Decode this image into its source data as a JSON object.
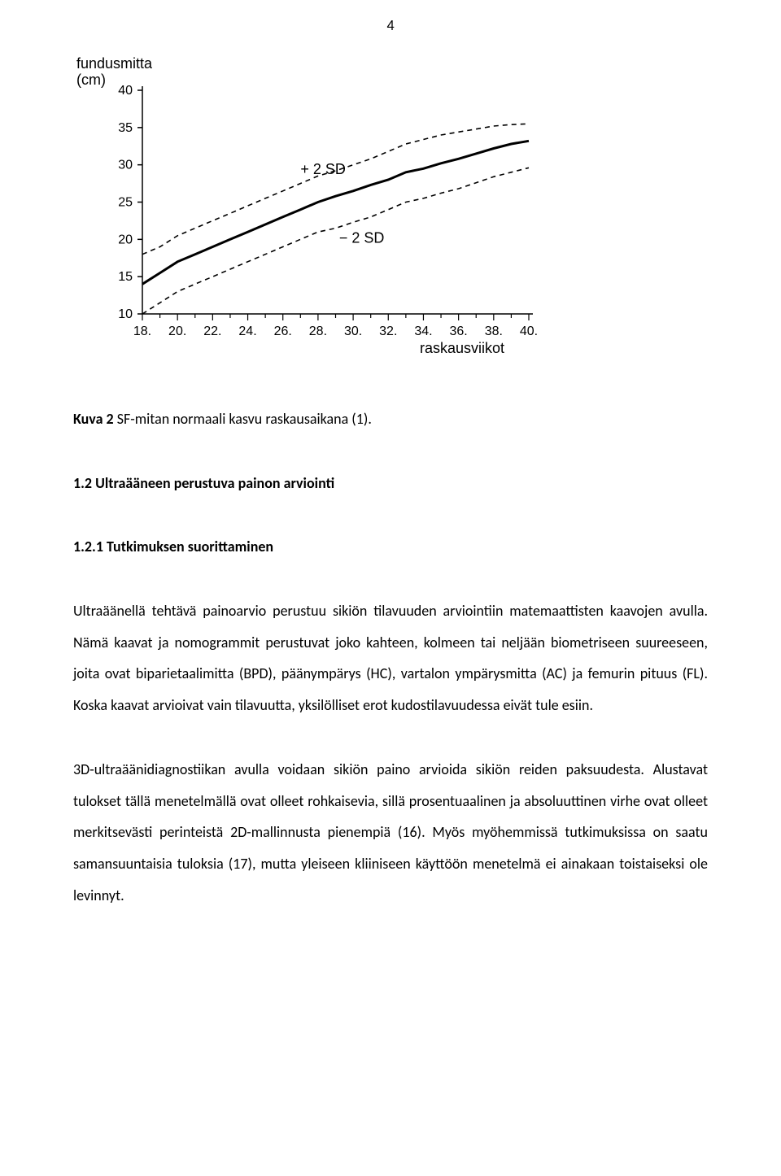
{
  "page_number": "4",
  "chart": {
    "type": "line",
    "y_axis_title_line1": "fundusmitta",
    "y_axis_title_line2": "(cm)",
    "x_axis_title": "raskausviikot",
    "y_ticks": [
      10,
      15,
      20,
      25,
      30,
      35,
      40
    ],
    "x_ticks": [
      18,
      20,
      22,
      24,
      26,
      28,
      30,
      32,
      34,
      36,
      38,
      40
    ],
    "upper_label": "+ 2 SD",
    "lower_label": "− 2 SD",
    "series_mean": {
      "x": [
        18,
        19,
        20,
        21,
        22,
        23,
        24,
        25,
        26,
        27,
        28,
        29,
        30,
        31,
        32,
        33,
        34,
        35,
        36,
        37,
        38,
        39,
        40
      ],
      "y": [
        14,
        15.5,
        17,
        18,
        19,
        20,
        21,
        22,
        23,
        24,
        25,
        25.8,
        26.5,
        27.3,
        28,
        29,
        29.5,
        30.2,
        30.8,
        31.5,
        32.2,
        32.8,
        33.2
      ],
      "stroke": "#000000",
      "stroke_width": 3.0,
      "dash": "none"
    },
    "series_upper": {
      "x": [
        18,
        19,
        20,
        21,
        22,
        23,
        24,
        25,
        26,
        27,
        28,
        29,
        30,
        31,
        32,
        33,
        34,
        35,
        36,
        37,
        38,
        39,
        40
      ],
      "y": [
        18,
        19,
        20.5,
        21.5,
        22.5,
        23.5,
        24.5,
        25.5,
        26.5,
        27.5,
        28.5,
        29.2,
        30,
        30.8,
        31.8,
        32.8,
        33.4,
        34,
        34.4,
        34.8,
        35.2,
        35.4,
        35.5
      ],
      "stroke": "#000000",
      "stroke_width": 1.6,
      "dash": "6,5"
    },
    "series_lower": {
      "x": [
        18,
        19,
        20,
        21,
        22,
        23,
        24,
        25,
        26,
        27,
        28,
        29,
        30,
        31,
        32,
        33,
        34,
        35,
        36,
        37,
        38,
        39,
        40
      ],
      "y": [
        10,
        11.5,
        13,
        14,
        15,
        16,
        17,
        18,
        19,
        20,
        21,
        21.5,
        22.3,
        23,
        24,
        25,
        25.5,
        26.2,
        26.8,
        27.6,
        28.4,
        29,
        29.6
      ],
      "stroke": "#000000",
      "stroke_width": 1.6,
      "dash": "6,5"
    },
    "xlim": [
      18,
      40
    ],
    "ylim": [
      10,
      40
    ],
    "axis_color": "#000000",
    "background": "#ffffff",
    "tick_fontsize": 16,
    "label_fontsize": 18
  },
  "caption": {
    "prefix_bold": "Kuva 2",
    "rest": " SF-mitan normaali kasvu raskausaikana (1)."
  },
  "heading1": "1.2 Ultraääneen perustuva painon arviointi",
  "heading2": "1.2.1 Tutkimuksen suorittaminen",
  "para1": "Ultraäänellä tehtävä painoarvio perustuu sikiön tilavuuden arviointiin matemaattisten kaavojen avulla. Nämä kaavat ja nomogrammit perustuvat joko kahteen, kolmeen tai neljään biometriseen suureeseen, joita ovat biparietaalimitta (BPD), päänympärys (HC), vartalon ympärysmitta (AC) ja femurin pituus (FL). Koska kaavat arvioivat vain tilavuutta, yksilölliset erot kudostilavuudessa eivät tule esiin.",
  "para2": "3D-ultraäänidiagnostiikan avulla voidaan sikiön paino arvioida sikiön reiden paksuudesta. Alustavat tulokset tällä menetelmällä ovat olleet rohkaisevia, sillä prosentuaalinen ja absoluuttinen virhe ovat olleet merkitsevästi perinteistä 2D-mallinnusta pienempiä (16). Myös myöhemmissä tutkimuksissa on saatu samansuuntaisia tuloksia (17), mutta yleiseen kliiniseen käyttöön menetelmä ei ainakaan toistaiseksi ole levinnyt."
}
